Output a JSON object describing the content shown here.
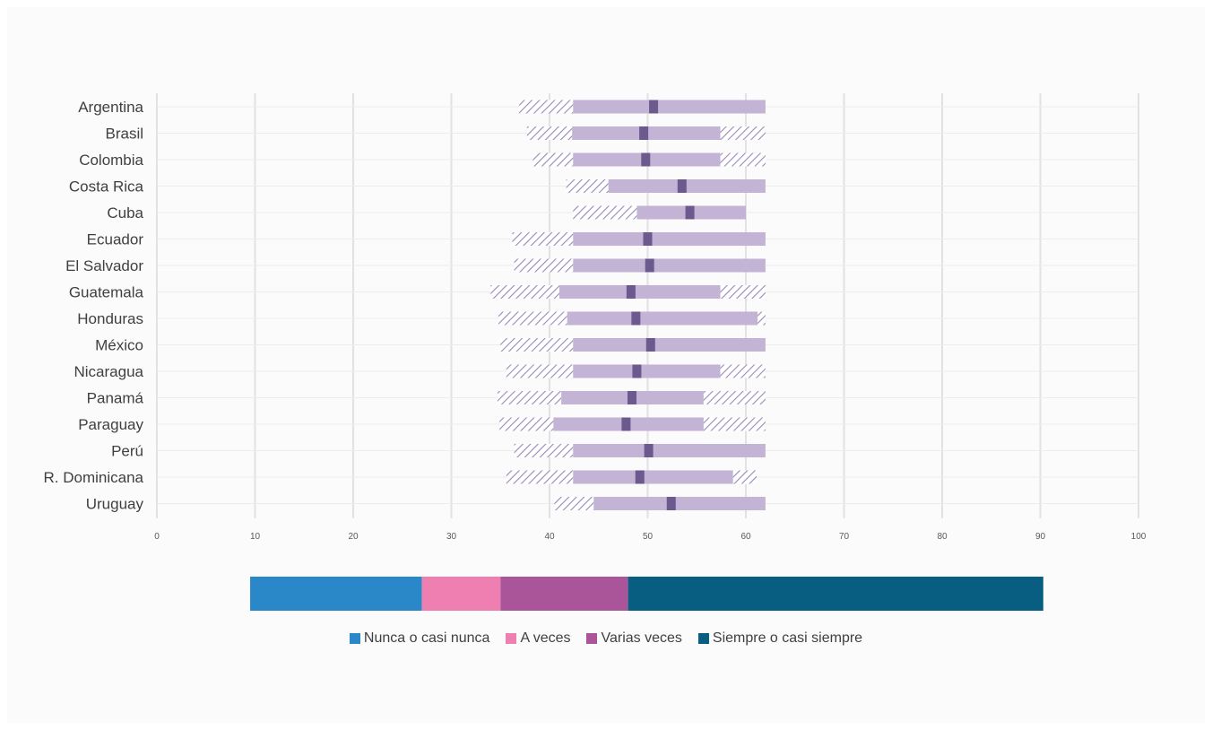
{
  "chart_data": {
    "type": "bar",
    "subtype": "interval-with-percentiles",
    "categories": [
      "Argentina",
      "Brasil",
      "Colombia",
      "Costa Rica",
      "Cuba",
      "Ecuador",
      "El Salvador",
      "Guatemala",
      "Honduras",
      "México",
      "Nicaragua",
      "Panamá",
      "Paraguay",
      "Perú",
      "R. Dominicana",
      "Uruguay"
    ],
    "series": [
      {
        "values": [
          36.9,
          37.7,
          38.3,
          41.7,
          42.4,
          36.2,
          36.4,
          34.0,
          34.8,
          35.0,
          35.6,
          34.7,
          34.9,
          36.4,
          35.6,
          40.5
        ]
      },
      {
        "values": [
          42.4,
          42.3,
          42.4,
          46.0,
          48.9,
          42.4,
          42.4,
          41.0,
          41.8,
          42.4,
          42.4,
          41.2,
          40.4,
          42.4,
          42.4,
          44.5
        ]
      },
      {
        "values": [
          50.6,
          49.6,
          49.8,
          53.5,
          54.3,
          50.0,
          50.2,
          48.3,
          48.8,
          50.3,
          48.9,
          48.4,
          47.8,
          50.1,
          49.2,
          52.4
        ]
      },
      {
        "values": [
          62.0,
          57.4,
          57.4,
          62.0,
          60.0,
          62.0,
          62.0,
          57.4,
          61.2,
          62.0,
          57.4,
          55.7,
          55.7,
          62.0,
          58.7,
          62.0
        ]
      },
      {
        "values": [
          62.0,
          62.0,
          62.0,
          62.0,
          60.0,
          62.0,
          62.0,
          62.0,
          62.0,
          62.0,
          62.0,
          62.0,
          62.0,
          62.0,
          61.1,
          62.0
        ]
      }
    ],
    "x_ticks": [
      "0",
      "10",
      "20",
      "30",
      "40",
      "50",
      "60",
      "70",
      "80",
      "90",
      "100"
    ],
    "xlim": [
      0,
      100
    ],
    "grid": true,
    "scale_bar": {
      "segments": [
        {
          "name": "Nunca o casi nunca",
          "value": 17.5,
          "color": "#2a88c8"
        },
        {
          "name": "A veces",
          "value": 8.0,
          "color": "#ef7fb0"
        },
        {
          "name": "Varias veces",
          "value": 13.0,
          "color": "#aa559a"
        },
        {
          "name": "Siempre o casi siempre",
          "value": 42.3,
          "color": "#075e80"
        }
      ],
      "start": 9.5
    },
    "colors": {
      "band": "#c3b3d5",
      "hatch": "#9888b8",
      "mean": "#6c5a8e",
      "grid": "#e2e2e2",
      "text": "#404040"
    }
  },
  "legend": {
    "items": [
      {
        "label": "Nunca o casi nunca",
        "color": "#2a88c8"
      },
      {
        "label": "A veces",
        "color": "#ef7fb0"
      },
      {
        "label": "Varias veces",
        "color": "#aa559a"
      },
      {
        "label": "Siempre o casi siempre",
        "color": "#075e80"
      }
    ]
  }
}
